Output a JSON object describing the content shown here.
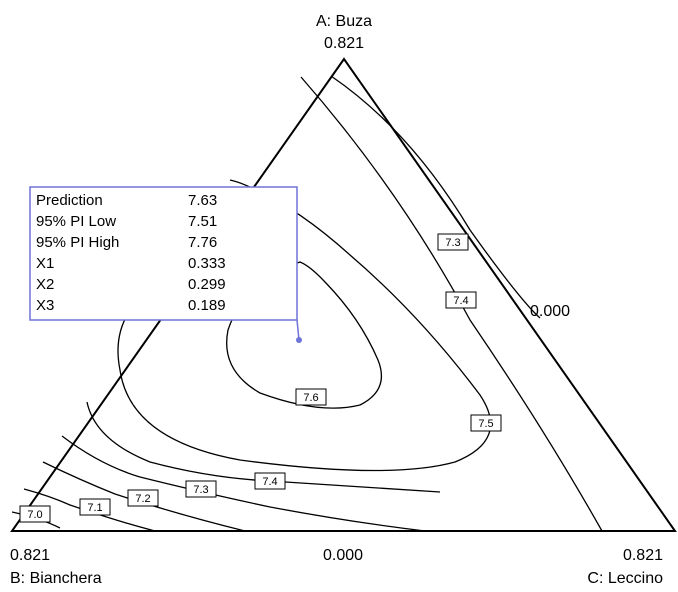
{
  "chart_data": {
    "type": "ternary_contour",
    "vertices": {
      "top": {
        "name": "A: Buza",
        "value": "0.821"
      },
      "left": {
        "name": "B: Bianchera",
        "value": "0.821"
      },
      "right": {
        "name": "C: Leccino",
        "value": "0.821"
      }
    },
    "edge_labels": {
      "right_edge": "0.000",
      "bottom_edge": "0.000"
    },
    "contours": [
      {
        "level": 7.0,
        "label": "7.0"
      },
      {
        "level": 7.1,
        "label": "7.1"
      },
      {
        "level": 7.2,
        "label": "7.2"
      },
      {
        "level": 7.3,
        "label": "7.3"
      },
      {
        "level": 7.4,
        "label": "7.4"
      },
      {
        "level": 7.5,
        "label": "7.5"
      },
      {
        "level": 7.6,
        "label": "7.6"
      }
    ],
    "prediction": {
      "marker_color": "#6f74d8",
      "rows": [
        {
          "label": "Prediction",
          "value": "7.63"
        },
        {
          "label": "95% PI Low",
          "value": "7.51"
        },
        {
          "label": "95% PI High",
          "value": "7.76"
        },
        {
          "label": "X1",
          "value": "0.333"
        },
        {
          "label": "X2",
          "value": "0.299"
        },
        {
          "label": "X3",
          "value": "0.189"
        }
      ]
    }
  }
}
